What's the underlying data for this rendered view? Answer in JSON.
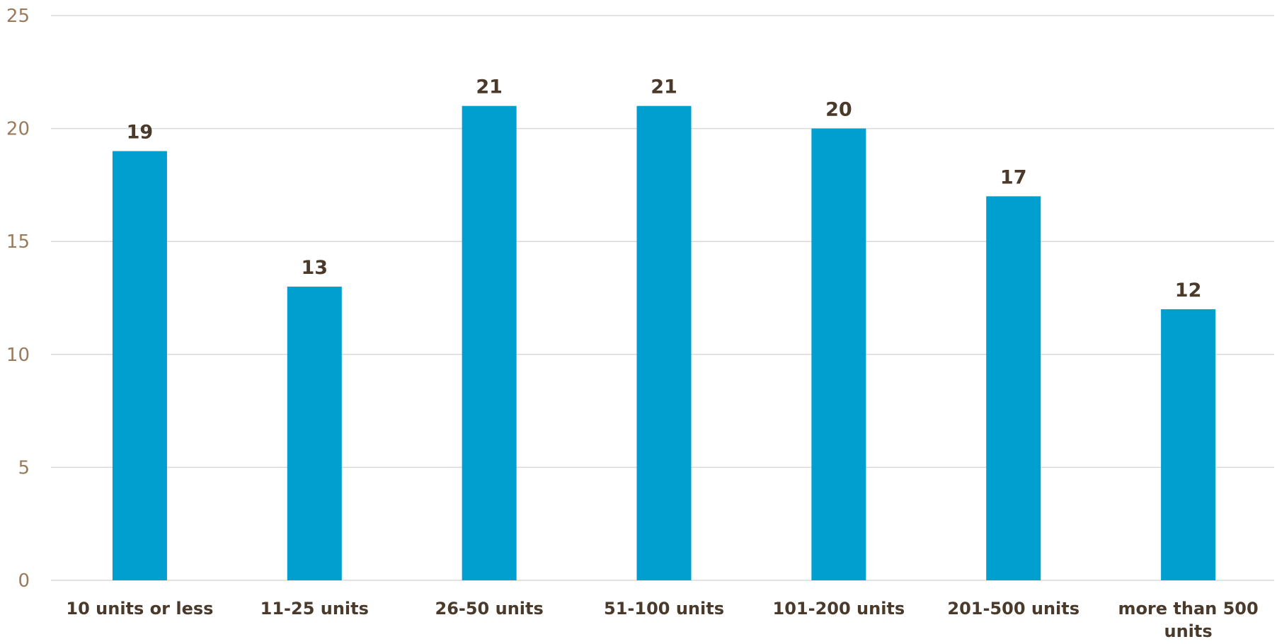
{
  "chart_data": {
    "type": "bar",
    "categories": [
      "10 units or less",
      "11-25 units",
      "26-50 units",
      "51-100 units",
      "101-200 units",
      "201-500 units",
      "more than 500 units"
    ],
    "values": [
      19,
      13,
      21,
      21,
      20,
      17,
      12
    ],
    "data_labels": [
      "19",
      "13",
      "21",
      "21",
      "20",
      "17",
      "12"
    ],
    "ylim": [
      0,
      25
    ],
    "yticks": [
      0,
      5,
      10,
      15,
      20,
      25
    ],
    "ytick_labels": [
      "0",
      "5",
      "10",
      "15",
      "20",
      "25"
    ],
    "grid": true,
    "legend": "none",
    "title": "",
    "xlabel": "",
    "ylabel": ""
  },
  "colors": {
    "bar": "#009fcf",
    "grid": "#d9d9d9",
    "tick_label": "#9a7b5c",
    "data_label": "#4a3a2c"
  }
}
